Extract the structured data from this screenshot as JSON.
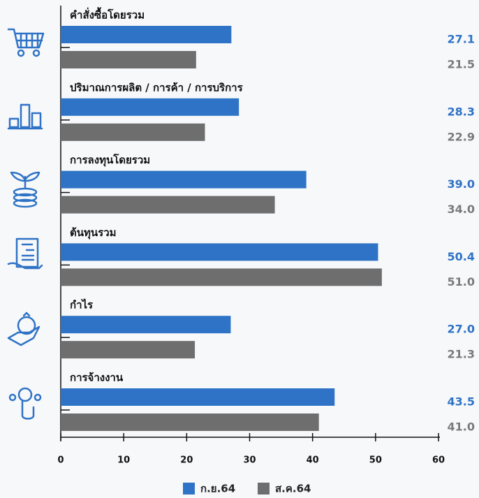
{
  "chart_data": {
    "type": "barh",
    "categories": [
      "คำสั่งซื้อโดยรวม",
      "ปริมาณการผลิต / การค้า / การบริการ",
      "การลงทุนโดยรวม",
      "ต้นทุนรวม",
      "กำไร",
      "การจ้างงาน"
    ],
    "series": [
      {
        "name": "ก.ย.64",
        "color": "#2f73c6",
        "values": [
          27.1,
          28.3,
          39,
          50.4,
          27,
          43.5
        ],
        "value_labels": [
          "27.1",
          "28.3",
          "39.0",
          "50.4",
          "27.0",
          "43.5"
        ]
      },
      {
        "name": "ส.ค.64",
        "color": "#6e6e6e",
        "values": [
          21.5,
          22.9,
          34,
          51,
          21.3,
          41
        ],
        "value_labels": [
          "21.5",
          "22.9",
          "34.0",
          "51.0",
          "21.3",
          "41.0"
        ]
      }
    ],
    "xlim": [
      0,
      60
    ],
    "xticks": [
      0,
      10,
      20,
      30,
      40,
      50,
      60
    ]
  }
}
